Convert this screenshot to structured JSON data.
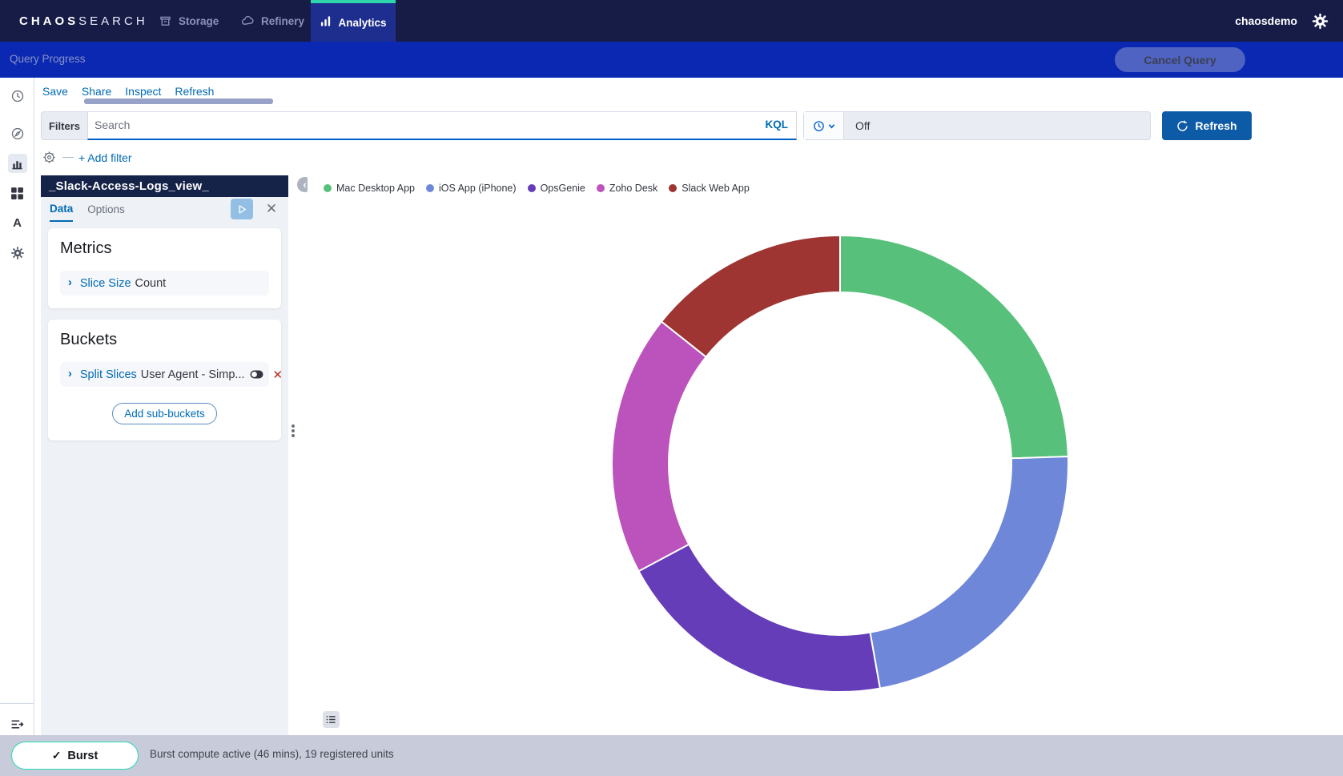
{
  "topnav": {
    "brand": {
      "bold": "CHAOS",
      "light": "SEARCH"
    },
    "items": {
      "storage": "Storage",
      "refinery": "Refinery",
      "analytics": "Analytics"
    },
    "user": "chaosdemo"
  },
  "querybar": {
    "label": "Query Progress",
    "cancel_label": "Cancel Query"
  },
  "toolbar": {
    "links": [
      "Save",
      "Share",
      "Inspect",
      "Refresh"
    ]
  },
  "search": {
    "filters_label": "Filters",
    "placeholder": "Search",
    "kql_label": "KQL",
    "add_filter_label": "+ Add filter"
  },
  "timepicker": {
    "value": "Off",
    "refresh_label": "Refresh"
  },
  "panel": {
    "title": "_Slack-Access-Logs_view_",
    "tab_data": "Data",
    "tab_options": "Options",
    "metrics": {
      "heading": "Metrics",
      "agg_link": "Slice Size",
      "agg_value": "Count"
    },
    "buckets": {
      "heading": "Buckets",
      "agg_link": "Split Slices",
      "agg_value": "User Agent - Simp...",
      "add_button": "Add sub-buckets"
    }
  },
  "chart_data": {
    "type": "pie",
    "subtype": "donut",
    "title": "",
    "legend_position": "top",
    "direction": "clockwise",
    "start_angle_deg": 0,
    "donut_inner_ratio": 0.75,
    "slices": [
      {
        "label": "Mac Desktop App",
        "color": "#57c17b",
        "percent": 24.5
      },
      {
        "label": "iOS App (iPhone)",
        "color": "#6f87d8",
        "percent": 22.7
      },
      {
        "label": "OpsGenie",
        "color": "#663db8",
        "percent": 20.0
      },
      {
        "label": "Zoho Desk",
        "color": "#bc52bc",
        "percent": 18.5
      },
      {
        "label": "Slack Web App",
        "color": "#9e3533",
        "percent": 14.3
      }
    ]
  },
  "statusbar": {
    "burst_label": "Burst",
    "status_text": "Burst compute active (46 mins), 19 registered units"
  },
  "icons": {
    "sidebar": [
      "recently-viewed-icon",
      "discover-icon",
      "visualize-icon",
      "dashboard-icon",
      "alerting-icon",
      "management-gear-icon",
      "expand-nav-icon"
    ],
    "colors": {
      "accent_teal": "#2fd6ac",
      "nav_navy": "#171c47",
      "active_tab_blue": "#1d2e8e",
      "query_blue": "#0a28b2",
      "link_blue": "#006bb4",
      "refresh_blue": "#0d5aa7",
      "danger_red": "#bd271e"
    }
  }
}
